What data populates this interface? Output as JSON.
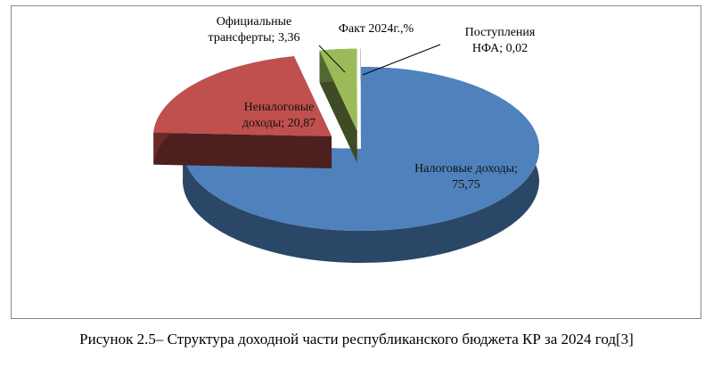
{
  "chart_data": {
    "type": "pie",
    "title": "Факт 2024г.,%",
    "slices": [
      {
        "name": "Налоговые доходы",
        "value": 75.75,
        "label_lines": [
          "Налоговые доходы;",
          "75,75"
        ],
        "color": "#4f81bd"
      },
      {
        "name": "Неналоговые доходы",
        "value": 20.87,
        "label_lines": [
          "Неналоговые",
          "доходы; 20,87"
        ],
        "color": "#c0504d"
      },
      {
        "name": "Официальные трансферты",
        "value": 3.36,
        "label_lines": [
          "Официальные",
          "трансферты; 3,36"
        ],
        "color": "#9bbb59"
      },
      {
        "name": "Поступления НФА",
        "value": 0.02,
        "label_lines": [
          "Поступления",
          "НФА; 0,02"
        ],
        "color": "#8064a2"
      }
    ],
    "style": "3d-exploded"
  },
  "caption": "Рисунок 2.5– Структура доходной части республиканского бюджета КР за 2024 год[3]"
}
